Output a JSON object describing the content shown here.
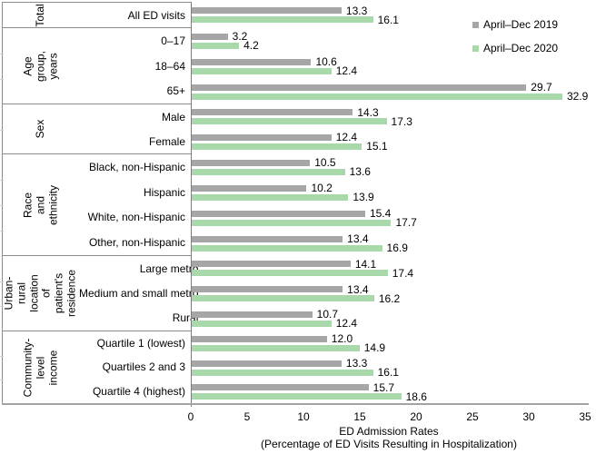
{
  "chart_data": {
    "type": "bar",
    "orientation": "horizontal",
    "xlabel_line1": "ED Admission Rates",
    "xlabel_line2": "(Percentage of ED Visits Resulting in Hospitalization)",
    "xlim": [
      0,
      35
    ],
    "x_ticks": [
      0,
      5,
      10,
      15,
      20,
      25,
      30,
      35
    ],
    "grid": false,
    "legend_position": "top-right",
    "series": [
      {
        "name": "April–Dec 2019",
        "color": "#a6a6a6"
      },
      {
        "name": "April–Dec 2020",
        "color": "#a9d8ab"
      }
    ],
    "groups": [
      {
        "group": "Total",
        "rows": [
          {
            "label": "All ED visits",
            "values": [
              13.3,
              16.1
            ]
          }
        ]
      },
      {
        "group": "Age group,\nyears",
        "rows": [
          {
            "label": "0–17",
            "values": [
              3.2,
              4.2
            ]
          },
          {
            "label": "18–64",
            "values": [
              10.6,
              12.4
            ]
          },
          {
            "label": "65+",
            "values": [
              29.7,
              32.9
            ]
          }
        ]
      },
      {
        "group": "Sex",
        "rows": [
          {
            "label": "Male",
            "values": [
              14.3,
              17.3
            ]
          },
          {
            "label": "Female",
            "values": [
              12.4,
              15.1
            ]
          }
        ]
      },
      {
        "group": "Race and ethnicity",
        "rows": [
          {
            "label": "Black, non-Hispanic",
            "values": [
              10.5,
              13.6
            ]
          },
          {
            "label": "Hispanic",
            "values": [
              10.2,
              13.9
            ]
          },
          {
            "label": "White, non-Hispanic",
            "values": [
              15.4,
              17.7
            ]
          },
          {
            "label": "Other, non-Hispanic",
            "values": [
              13.4,
              16.9
            ]
          }
        ]
      },
      {
        "group": "Urban-rural\nlocation of\npatient's\nresidence",
        "rows": [
          {
            "label": "Large metro",
            "values": [
              14.1,
              17.4
            ]
          },
          {
            "label": "Medium and small metro",
            "values": [
              13.4,
              16.2
            ]
          },
          {
            "label": "Rural",
            "values": [
              10.7,
              12.4
            ]
          }
        ]
      },
      {
        "group": "Community-\nlevel income",
        "rows": [
          {
            "label": "Quartile 1 (lowest)",
            "values": [
              12.0,
              14.9
            ]
          },
          {
            "label": "Quartiles 2 and 3",
            "values": [
              13.3,
              16.1
            ]
          },
          {
            "label": "Quartile 4 (highest)",
            "values": [
              15.7,
              18.6
            ]
          }
        ]
      }
    ]
  }
}
